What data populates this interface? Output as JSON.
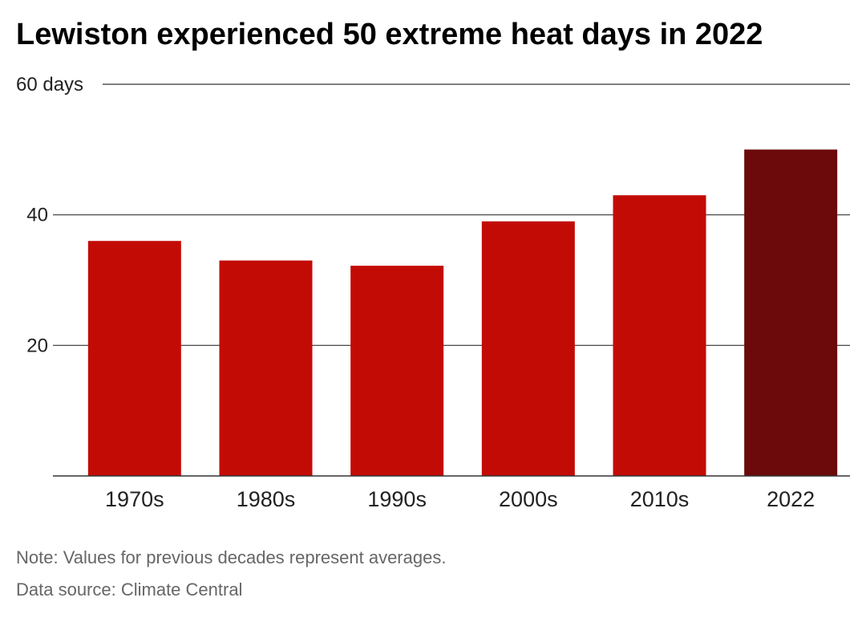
{
  "title": "Lewiston experienced 50 extreme heat days in 2022",
  "note": "Note: Values for previous decades represent averages.",
  "source": "Data source: Climate Central",
  "colors": {
    "bar": "#c30b05",
    "highlight": "#6b090b",
    "grid": "#333333"
  },
  "chart_data": {
    "type": "bar",
    "categories": [
      "1970s",
      "1980s",
      "1990s",
      "2000s",
      "2010s",
      "2022"
    ],
    "values": [
      36,
      33,
      32.2,
      39,
      43,
      50
    ],
    "highlight_index": 5,
    "ylim": [
      0,
      60
    ],
    "yticks": [
      20,
      40,
      60
    ],
    "ytick_labels": [
      "20",
      "40",
      "60 days"
    ],
    "grid": true
  }
}
